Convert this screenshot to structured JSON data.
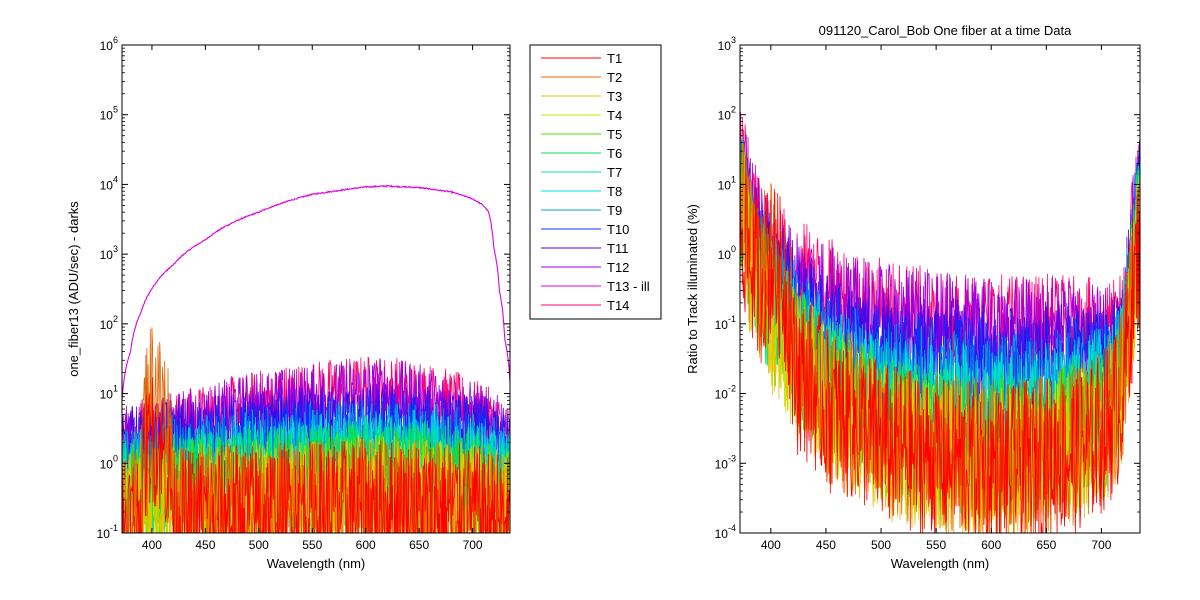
{
  "window": {
    "title": ""
  },
  "chart_data": [
    {
      "id": "left",
      "type": "line",
      "title": "",
      "xlabel": "Wavelength (nm)",
      "ylabel": "one_fiber13  (ADU/sec) - darks",
      "xlim": [
        372,
        735
      ],
      "ylim": [
        0.1,
        1000000
      ],
      "yscale": "log",
      "x_ticks": [
        400,
        450,
        500,
        550,
        600,
        650,
        700
      ],
      "y_ticks": [
        {
          "base": "10",
          "exp": "-1"
        },
        {
          "base": "10",
          "exp": "0"
        },
        {
          "base": "10",
          "exp": "1"
        },
        {
          "base": "10",
          "exp": "2"
        },
        {
          "base": "10",
          "exp": "3"
        },
        {
          "base": "10",
          "exp": "4"
        },
        {
          "base": "10",
          "exp": "5"
        },
        {
          "base": "10",
          "exp": "6"
        }
      ],
      "x": [
        372,
        380,
        390,
        400,
        420,
        450,
        500,
        550,
        600,
        620,
        650,
        680,
        700,
        710,
        715,
        720,
        725,
        730,
        735
      ],
      "series": [
        {
          "name": "T13 - ill",
          "values": [
            8,
            40,
            150,
            320,
            700,
            1600,
            4000,
            7200,
            9200,
            9500,
            9000,
            7800,
            6200,
            5000,
            4000,
            1200,
            300,
            60,
            15
          ]
        },
        {
          "name": "T14",
          "values": [
            2.5,
            3,
            3,
            3.5,
            4,
            5,
            8,
            11,
            13,
            13,
            11,
            8,
            6,
            5,
            4.5,
            4,
            3.5,
            3,
            2.5
          ]
        },
        {
          "name": "T12",
          "values": [
            2,
            2.5,
            2.8,
            3,
            3.5,
            4.5,
            7,
            9,
            11,
            11,
            9,
            6.5,
            5,
            4.5,
            4,
            3.5,
            3,
            2.5,
            2
          ]
        },
        {
          "name": "T11",
          "values": [
            1.5,
            2,
            2.2,
            2.5,
            2.8,
            3,
            3.5,
            4,
            4.5,
            4.5,
            4,
            3.5,
            3,
            3,
            2.8,
            2.5,
            2.2,
            2,
            1.8
          ]
        },
        {
          "name": "T10",
          "values": [
            1,
            1.3,
            1.5,
            1.6,
            1.8,
            2,
            2.5,
            3,
            3.2,
            3.2,
            3,
            2.5,
            2.2,
            2,
            1.9,
            1.8,
            1.6,
            1.4,
            1.2
          ]
        },
        {
          "name": "T9",
          "values": [
            0.8,
            0.9,
            1,
            1.1,
            1.2,
            1.4,
            1.7,
            2,
            2.2,
            2.2,
            2,
            1.7,
            1.5,
            1.4,
            1.3,
            1.2,
            1.1,
            1,
            0.9
          ]
        },
        {
          "name": "T8",
          "values": [
            0.6,
            0.7,
            0.8,
            0.85,
            0.9,
            1,
            1.2,
            1.4,
            1.5,
            1.5,
            1.4,
            1.2,
            1.1,
            1,
            0.95,
            0.9,
            0.85,
            0.8,
            0.7
          ]
        },
        {
          "name": "T7",
          "values": [
            0.5,
            0.55,
            0.6,
            0.65,
            0.7,
            0.75,
            0.85,
            1,
            1.1,
            1.1,
            1,
            0.85,
            0.8,
            0.75,
            0.7,
            0.65,
            0.6,
            0.55,
            0.5
          ]
        },
        {
          "name": "T6",
          "values": [
            0.4,
            0.45,
            0.5,
            0.5,
            0.55,
            0.6,
            0.7,
            0.8,
            0.85,
            0.85,
            0.8,
            0.7,
            0.6,
            0.55,
            0.5,
            0.5,
            0.45,
            0.4,
            0.4
          ]
        },
        {
          "name": "T5",
          "values": [
            0.3,
            0.35,
            0.4,
            0.4,
            0.42,
            0.45,
            0.5,
            0.55,
            0.6,
            0.6,
            0.55,
            0.5,
            0.45,
            0.42,
            0.4,
            0.38,
            0.35,
            0.32,
            0.3
          ]
        },
        {
          "name": "T4",
          "values": [
            0.25,
            0.28,
            0.3,
            0.3,
            0.32,
            0.35,
            0.38,
            0.42,
            0.45,
            0.45,
            0.42,
            0.38,
            0.35,
            0.32,
            0.3,
            0.3,
            0.28,
            0.26,
            0.25
          ]
        },
        {
          "name": "T3",
          "values": [
            0.22,
            0.24,
            0.25,
            0.26,
            0.28,
            0.3,
            0.32,
            0.35,
            0.38,
            0.38,
            0.35,
            0.32,
            0.3,
            0.28,
            0.27,
            0.26,
            0.25,
            0.23,
            0.22
          ]
        },
        {
          "name": "T2",
          "values": [
            0.2,
            0.22,
            0.3,
            20,
            0.25,
            0.28,
            0.3,
            0.32,
            0.35,
            0.35,
            0.32,
            0.3,
            0.28,
            0.26,
            0.25,
            0.24,
            0.23,
            0.21,
            0.2
          ]
        },
        {
          "name": "T1",
          "values": [
            0.18,
            0.2,
            0.25,
            3,
            0.22,
            0.25,
            0.28,
            0.3,
            0.32,
            0.32,
            0.3,
            0.28,
            0.26,
            0.24,
            0.23,
            0.22,
            0.21,
            0.2,
            0.18
          ]
        }
      ]
    },
    {
      "id": "right",
      "type": "line",
      "title": "091120_Carol_Bob  One fiber at a time Data",
      "xlabel": "Wavelength (nm)",
      "ylabel": "Ratio to Track illuminated (%)",
      "xlim": [
        372,
        735
      ],
      "ylim": [
        0.0001,
        1000
      ],
      "yscale": "log",
      "x_ticks": [
        400,
        450,
        500,
        550,
        600,
        650,
        700
      ],
      "y_ticks": [
        {
          "base": "10",
          "exp": "-4"
        },
        {
          "base": "10",
          "exp": "-3"
        },
        {
          "base": "10",
          "exp": "-2"
        },
        {
          "base": "10",
          "exp": "-1"
        },
        {
          "base": "10",
          "exp": "0"
        },
        {
          "base": "10",
          "exp": "1"
        },
        {
          "base": "10",
          "exp": "2"
        },
        {
          "base": "10",
          "exp": "3"
        }
      ],
      "x": [
        372,
        380,
        390,
        400,
        420,
        450,
        500,
        550,
        600,
        620,
        650,
        680,
        700,
        710,
        715,
        720,
        725,
        730,
        735
      ],
      "series": [
        {
          "name": "T14",
          "values": [
            40,
            8,
            3,
            1.5,
            0.8,
            0.4,
            0.2,
            0.14,
            0.13,
            0.12,
            0.12,
            0.11,
            0.1,
            0.1,
            0.1,
            0.15,
            1,
            5,
            15
          ]
        },
        {
          "name": "T12",
          "values": [
            30,
            6,
            2.5,
            1.2,
            0.6,
            0.3,
            0.15,
            0.12,
            0.1,
            0.1,
            0.1,
            0.09,
            0.09,
            0.08,
            0.08,
            0.12,
            0.8,
            4,
            12
          ]
        },
        {
          "name": "T11",
          "values": [
            20,
            4,
            1.5,
            0.8,
            0.3,
            0.12,
            0.06,
            0.045,
            0.04,
            0.04,
            0.04,
            0.04,
            0.045,
            0.05,
            0.05,
            0.08,
            0.5,
            3,
            10
          ]
        },
        {
          "name": "T10",
          "values": [
            15,
            3,
            1,
            0.5,
            0.2,
            0.07,
            0.03,
            0.025,
            0.022,
            0.022,
            0.022,
            0.025,
            0.03,
            0.035,
            0.04,
            0.06,
            0.4,
            2,
            8
          ]
        },
        {
          "name": "T9",
          "values": [
            12,
            2.5,
            0.8,
            0.4,
            0.12,
            0.04,
            0.018,
            0.014,
            0.012,
            0.012,
            0.013,
            0.015,
            0.02,
            0.025,
            0.03,
            0.05,
            0.3,
            1.5,
            6
          ]
        },
        {
          "name": "T8",
          "values": [
            10,
            2,
            0.6,
            0.3,
            0.09,
            0.025,
            0.01,
            0.008,
            0.007,
            0.007,
            0.008,
            0.01,
            0.014,
            0.018,
            0.022,
            0.04,
            0.25,
            1.2,
            5
          ]
        },
        {
          "name": "T7",
          "values": [
            9,
            1.8,
            0.5,
            0.25,
            0.07,
            0.018,
            0.007,
            0.005,
            0.0045,
            0.0045,
            0.005,
            0.007,
            0.01,
            0.014,
            0.018,
            0.035,
            0.2,
            1,
            4
          ]
        },
        {
          "name": "T6",
          "values": [
            8,
            1.5,
            0.4,
            0.2,
            0.05,
            0.012,
            0.004,
            0.003,
            0.0025,
            0.0025,
            0.003,
            0.004,
            0.006,
            0.01,
            0.014,
            0.03,
            0.15,
            0.8,
            3
          ]
        },
        {
          "name": "T5",
          "values": [
            10,
            1.6,
            0.45,
            0.2,
            0.05,
            0.012,
            0.004,
            0.0025,
            0.002,
            0.002,
            0.0025,
            0.0035,
            0.005,
            0.008,
            0.012,
            0.025,
            0.12,
            0.6,
            2.5
          ]
        },
        {
          "name": "T4",
          "values": [
            6,
            1.2,
            0.3,
            0.15,
            0.04,
            0.01,
            0.003,
            0.0018,
            0.0015,
            0.0015,
            0.0018,
            0.0025,
            0.004,
            0.007,
            0.01,
            0.02,
            0.1,
            0.5,
            2
          ]
        },
        {
          "name": "T3",
          "values": [
            5,
            1,
            0.25,
            0.12,
            0.035,
            0.008,
            0.0025,
            0.0015,
            0.0012,
            0.0012,
            0.0015,
            0.002,
            0.0035,
            0.006,
            0.009,
            0.018,
            0.09,
            0.45,
            1.8
          ]
        },
        {
          "name": "T2",
          "values": [
            5,
            1.5,
            0.6,
            1.2,
            0.04,
            0.01,
            0.003,
            0.0018,
            0.0015,
            0.0015,
            0.0018,
            0.0025,
            0.004,
            0.007,
            0.01,
            0.02,
            0.1,
            0.5,
            2
          ]
        },
        {
          "name": "T1",
          "values": [
            4,
            1.2,
            0.5,
            1,
            0.03,
            0.008,
            0.0025,
            0.0015,
            0.0012,
            0.0012,
            0.0015,
            0.002,
            0.0035,
            0.006,
            0.009,
            0.018,
            0.09,
            0.45,
            1.8
          ]
        }
      ]
    }
  ],
  "legend": {
    "placement": "between-panels",
    "entries": [
      {
        "label": "T1",
        "color": "#ff0000"
      },
      {
        "label": "T2",
        "color": "#e06400"
      },
      {
        "label": "T3",
        "color": "#e8c000"
      },
      {
        "label": "T4",
        "color": "#c8e000"
      },
      {
        "label": "T5",
        "color": "#50e000"
      },
      {
        "label": "T6",
        "color": "#00e050"
      },
      {
        "label": "T7",
        "color": "#00e0a0"
      },
      {
        "label": "T8",
        "color": "#00e0e0"
      },
      {
        "label": "T9",
        "color": "#00a0e0"
      },
      {
        "label": "T10",
        "color": "#0030ff"
      },
      {
        "label": "T11",
        "color": "#5000e0"
      },
      {
        "label": "T12",
        "color": "#a000e0"
      },
      {
        "label": "T13 - ill",
        "color": "#e000e0"
      },
      {
        "label": "T14",
        "color": "#ff0070"
      }
    ]
  }
}
